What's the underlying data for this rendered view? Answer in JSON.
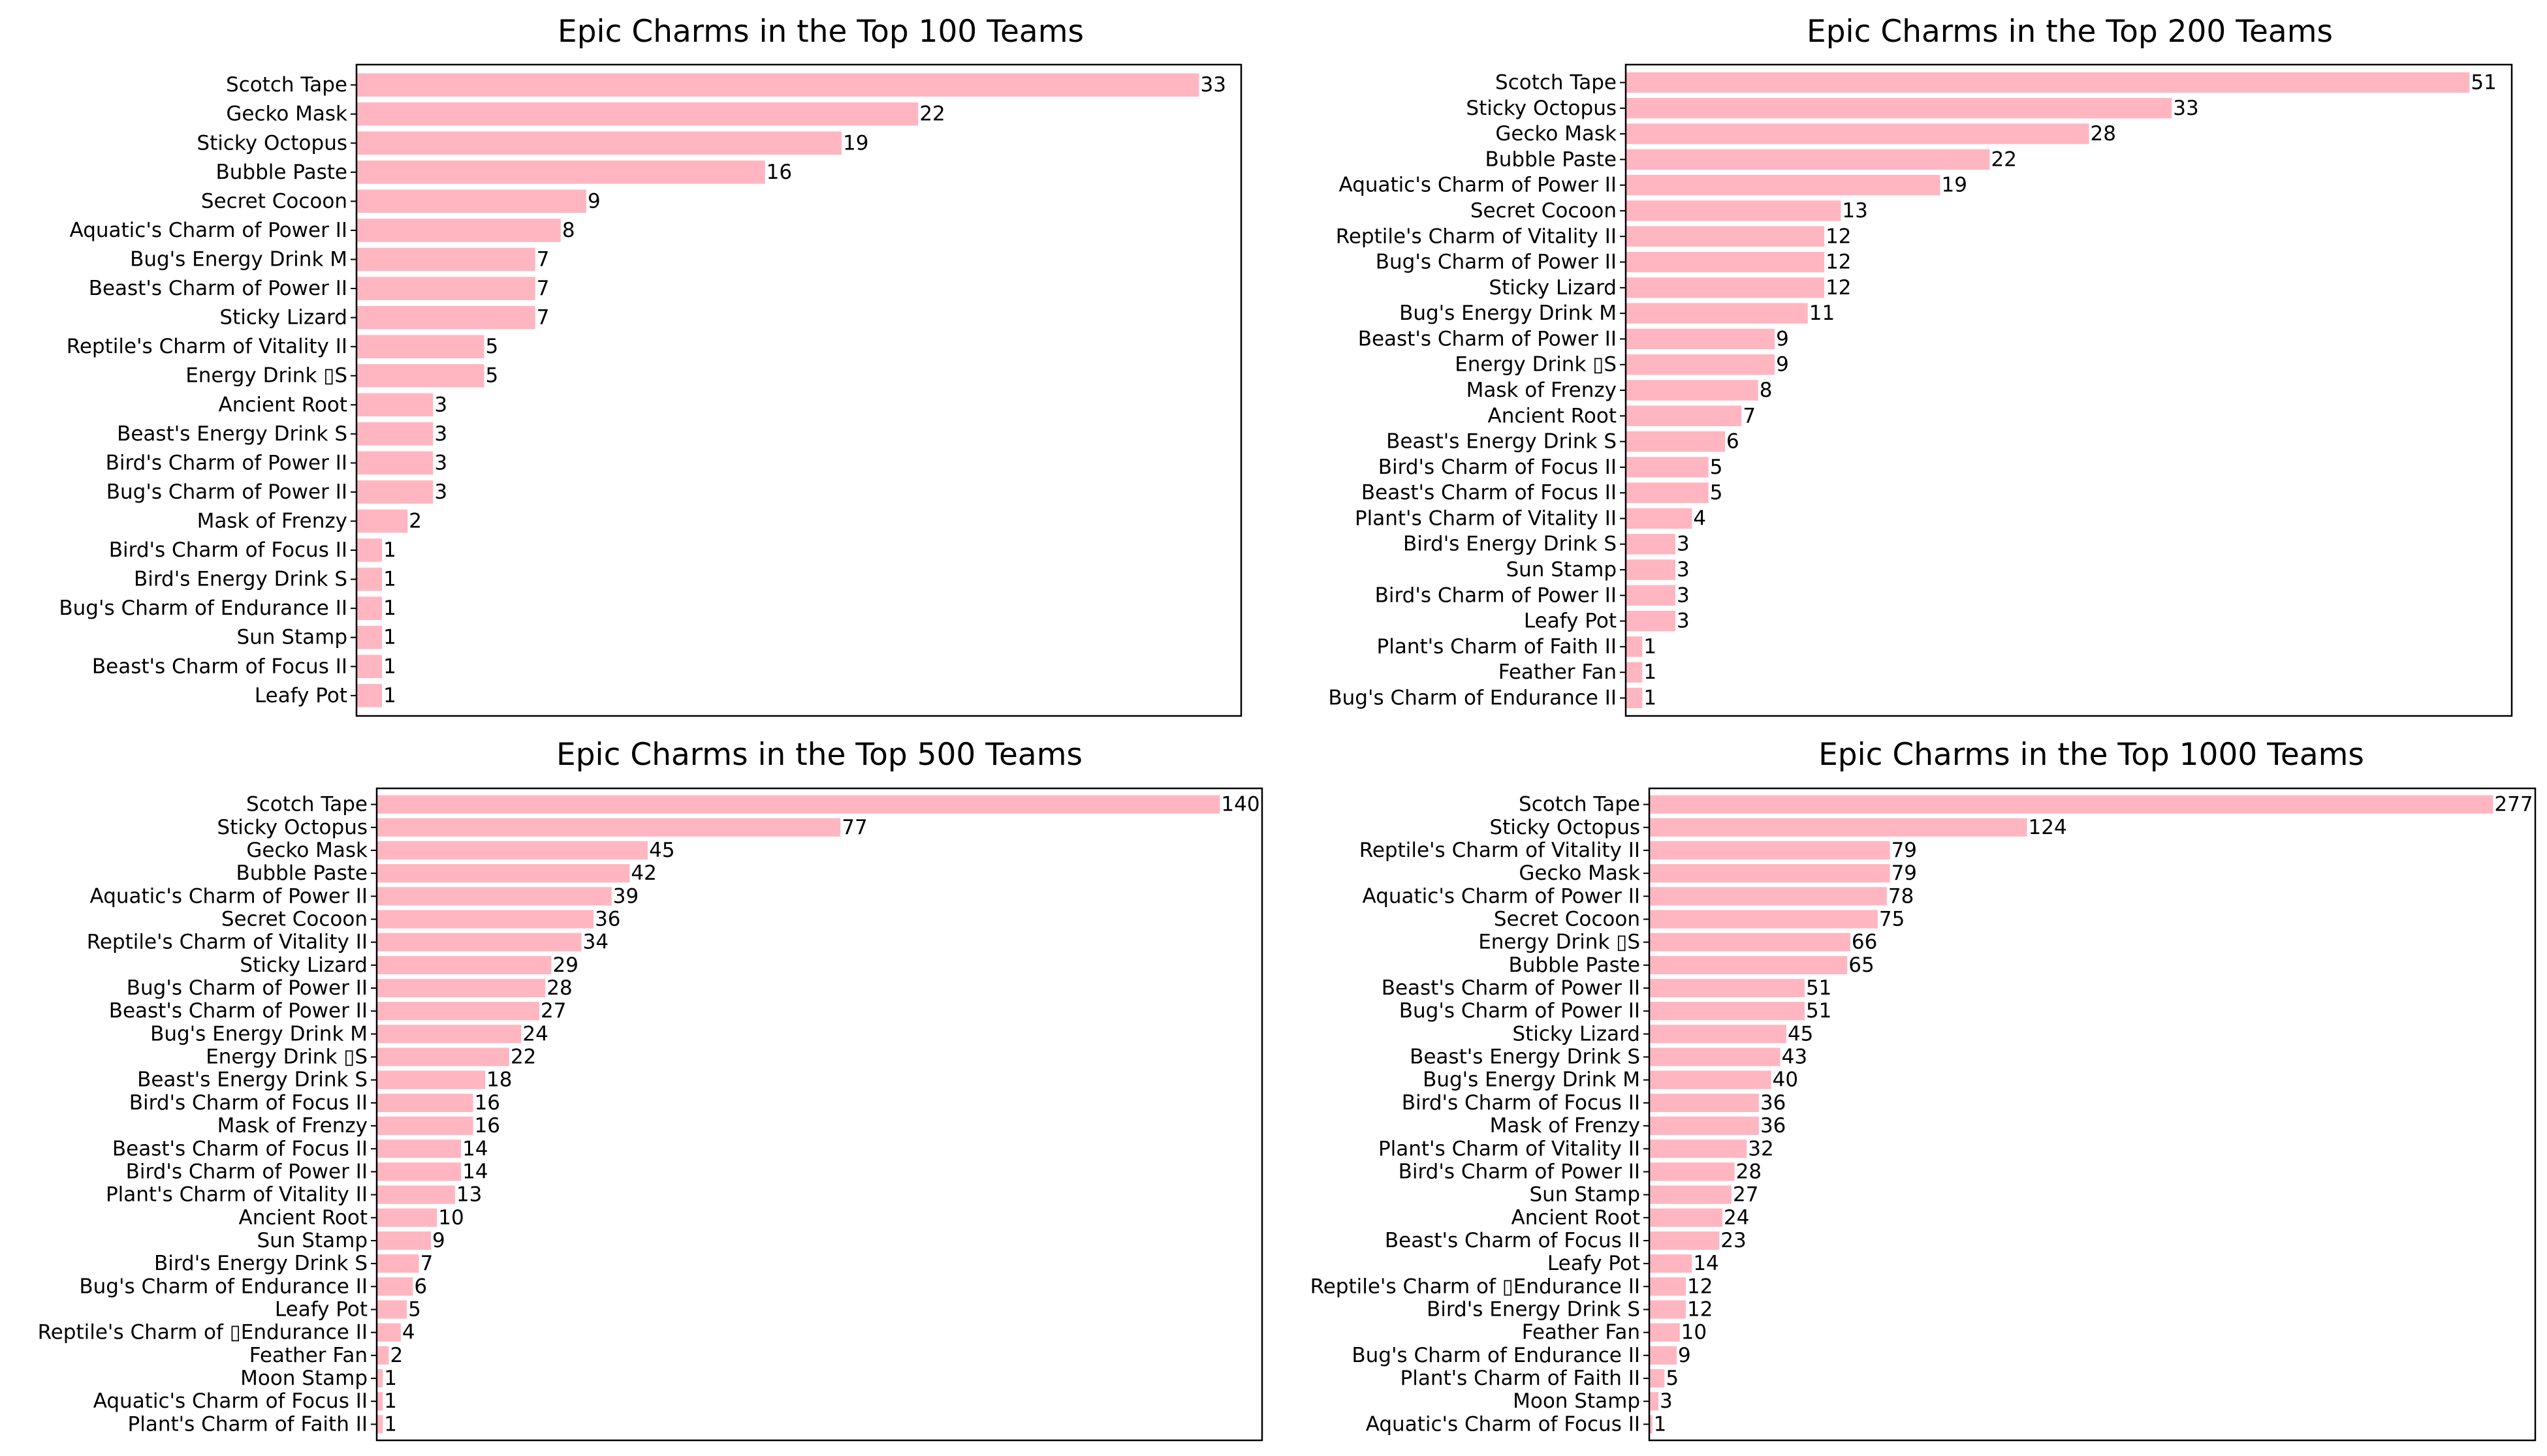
{
  "colors": {
    "bar": "#ffb6c1",
    "background": "#ffffff",
    "axis": "#000000"
  },
  "chart_data": [
    {
      "type": "bar",
      "orientation": "horizontal",
      "title": "Epic Charms in the Top 100 Teams",
      "xlabel": "",
      "ylabel": "",
      "xlim": [
        0,
        34.65
      ],
      "categories": [
        "Scotch Tape",
        "Gecko Mask",
        "Sticky Octopus",
        "Bubble Paste",
        "Secret Cocoon",
        "Aquatic's Charm of Power II",
        "Bug's Energy Drink M",
        "Beast's Charm of Power II",
        "Sticky Lizard",
        "Reptile's Charm of Vitality II",
        "Energy Drink ▯S",
        "Ancient Root",
        "Beast's Energy Drink S",
        "Bird's Charm of Power II",
        "Bug's Charm of Power II",
        "Mask of Frenzy",
        "Bird's Charm of Focus II",
        "Bird's Energy Drink S",
        "Bug's Charm of Endurance II",
        "Sun Stamp",
        "Beast's Charm of Focus II",
        "Leafy Pot"
      ],
      "values": [
        33,
        22,
        19,
        16,
        9,
        8,
        7,
        7,
        7,
        5,
        5,
        3,
        3,
        3,
        3,
        2,
        1,
        1,
        1,
        1,
        1,
        1
      ],
      "value_labels": [
        "33",
        "22",
        "19",
        "16",
        "9",
        "8",
        "7",
        "7",
        "7",
        "5",
        "5",
        "3",
        "3",
        "3",
        "3",
        "2",
        "1",
        "1",
        "1",
        "1",
        "1",
        "1"
      ]
    },
    {
      "type": "bar",
      "orientation": "horizontal",
      "title": "Epic Charms in the Top 200 Teams",
      "xlabel": "",
      "ylabel": "",
      "xlim": [
        0,
        53.55
      ],
      "categories": [
        "Scotch Tape",
        "Sticky Octopus",
        "Gecko Mask",
        "Bubble Paste",
        "Aquatic's Charm of Power II",
        "Secret Cocoon",
        "Reptile's Charm of Vitality II",
        "Bug's Charm of Power II",
        "Sticky Lizard",
        "Bug's Energy Drink M",
        "Beast's Charm of Power II",
        "Energy Drink ▯S",
        "Mask of Frenzy",
        "Ancient Root",
        "Beast's Energy Drink S",
        "Bird's Charm of Focus II",
        "Beast's Charm of Focus II",
        "Plant's Charm of Vitality II",
        "Bird's Energy Drink S",
        "Sun Stamp",
        "Bird's Charm of Power II",
        "Leafy Pot",
        "Plant's Charm of Faith II",
        "Feather Fan",
        "Bug's Charm of Endurance II"
      ],
      "values": [
        51,
        33,
        28,
        22,
        19,
        13,
        12,
        12,
        12,
        11,
        9,
        9,
        8,
        7,
        6,
        5,
        5,
        4,
        3,
        3,
        3,
        3,
        1,
        1,
        1
      ],
      "value_labels": [
        "51",
        "33",
        "28",
        "22",
        "19",
        "13",
        "12",
        "12",
        "12",
        "11",
        "9",
        "9",
        "8",
        "7",
        "6",
        "5",
        "5",
        "4",
        "3",
        "3",
        "3",
        "3",
        "1",
        "1",
        "1"
      ]
    },
    {
      "type": "bar",
      "orientation": "horizontal",
      "title": "Epic Charms in the Top 500 Teams",
      "xlabel": "",
      "ylabel": "",
      "xlim": [
        0,
        147
      ],
      "categories": [
        "Scotch Tape",
        "Sticky Octopus",
        "Gecko Mask",
        "Bubble Paste",
        "Aquatic's Charm of Power II",
        "Secret Cocoon",
        "Reptile's Charm of Vitality II",
        "Sticky Lizard",
        "Bug's Charm of Power II",
        "Beast's Charm of Power II",
        "Bug's Energy Drink M",
        "Energy Drink ▯S",
        "Beast's Energy Drink S",
        "Bird's Charm of Focus II",
        "Mask of Frenzy",
        "Beast's Charm of Focus II",
        "Bird's Charm of Power II",
        "Plant's Charm of Vitality II",
        "Ancient Root",
        "Sun Stamp",
        "Bird's Energy Drink S",
        "Bug's Charm of Endurance II",
        "Leafy Pot",
        "Reptile's Charm of ▯Endurance II",
        "Feather Fan",
        "Moon Stamp",
        "Aquatic's Charm of Focus II",
        "Plant's Charm of Faith II"
      ],
      "values": [
        140,
        77,
        45,
        42,
        39,
        36,
        34,
        29,
        28,
        27,
        24,
        22,
        18,
        16,
        16,
        14,
        14,
        13,
        10,
        9,
        7,
        6,
        5,
        4,
        2,
        1,
        1,
        1
      ],
      "value_labels": [
        "140",
        "77",
        "45",
        "42",
        "39",
        "36",
        "34",
        "29",
        "28",
        "27",
        "24",
        "22",
        "18",
        "16",
        "16",
        "14",
        "14",
        "13",
        "10",
        "9",
        "7",
        "6",
        "5",
        "4",
        "2",
        "1",
        "1",
        "1"
      ]
    },
    {
      "type": "bar",
      "orientation": "horizontal",
      "title": "Epic Charms in the Top 1000 Teams",
      "xlabel": "",
      "ylabel": "",
      "xlim": [
        0,
        290.85
      ],
      "categories": [
        "Scotch Tape",
        "Sticky Octopus",
        "Reptile's Charm of Vitality II",
        "Gecko Mask",
        "Aquatic's Charm of Power II",
        "Secret Cocoon",
        "Energy Drink ▯S",
        "Bubble Paste",
        "Beast's Charm of Power II",
        "Bug's Charm of Power II",
        "Sticky Lizard",
        "Beast's Energy Drink S",
        "Bug's Energy Drink M",
        "Bird's Charm of Focus II",
        "Mask of Frenzy",
        "Plant's Charm of Vitality II",
        "Bird's Charm of Power II",
        "Sun Stamp",
        "Ancient Root",
        "Beast's Charm of Focus II",
        "Leafy Pot",
        "Reptile's Charm of ▯Endurance II",
        "Bird's Energy Drink S",
        "Feather Fan",
        "Bug's Charm of Endurance II",
        "Plant's Charm of Faith II",
        "Moon Stamp",
        "Aquatic's Charm of Focus II"
      ],
      "values": [
        277,
        124,
        79,
        79,
        78,
        75,
        66,
        65,
        51,
        51,
        45,
        43,
        40,
        36,
        36,
        32,
        28,
        27,
        24,
        23,
        14,
        12,
        12,
        10,
        9,
        5,
        3,
        1
      ],
      "value_labels": [
        "277",
        "124",
        "79",
        "79",
        "78",
        "75",
        "66",
        "65",
        "51",
        "51",
        "45",
        "43",
        "40",
        "36",
        "36",
        "32",
        "28",
        "27",
        "24",
        "23",
        "14",
        "12",
        "12",
        "10",
        "9",
        "5",
        "3",
        "1"
      ]
    }
  ]
}
